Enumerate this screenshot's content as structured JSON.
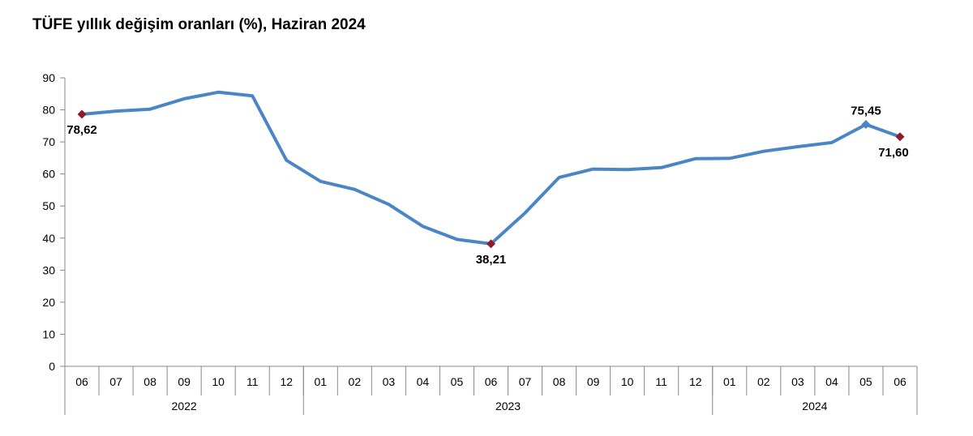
{
  "title": "TÜFE yıllık değişim oranları (%), Haziran 2024",
  "chart_data": {
    "type": "line",
    "title": "TÜFE yıllık değişim oranları (%), Haziran 2024",
    "xlabel": "",
    "ylabel": "",
    "ylim": [
      0,
      90
    ],
    "yticks": [
      "0",
      "10",
      "20",
      "30",
      "40",
      "50",
      "60",
      "70",
      "80",
      "90"
    ],
    "categories": [
      "06",
      "07",
      "08",
      "09",
      "10",
      "11",
      "12",
      "01",
      "02",
      "03",
      "04",
      "05",
      "06",
      "07",
      "08",
      "09",
      "10",
      "11",
      "12",
      "01",
      "02",
      "03",
      "04",
      "05",
      "06"
    ],
    "year_groups": [
      {
        "label": "2022",
        "count": 7
      },
      {
        "label": "2023",
        "count": 12
      },
      {
        "label": "2024",
        "count": 6
      }
    ],
    "series": [
      {
        "color": "#4a86c5",
        "values": [
          78.62,
          79.6,
          80.21,
          83.45,
          85.51,
          84.39,
          64.27,
          57.68,
          55.18,
          50.51,
          43.68,
          39.59,
          38.21,
          47.83,
          58.94,
          61.53,
          61.36,
          61.98,
          64.77,
          64.86,
          67.07,
          68.5,
          69.8,
          75.45,
          71.6
        ]
      }
    ],
    "annotations": [
      {
        "index": 0,
        "text": "78,62",
        "position": "below"
      },
      {
        "index": 12,
        "text": "38,21",
        "position": "below"
      },
      {
        "index": 23,
        "text": "75,45",
        "position": "above"
      },
      {
        "index": 24,
        "text": "71,60",
        "position": "below"
      }
    ],
    "marker_color": "#8b1c2c",
    "grid": false,
    "legend": "none"
  }
}
